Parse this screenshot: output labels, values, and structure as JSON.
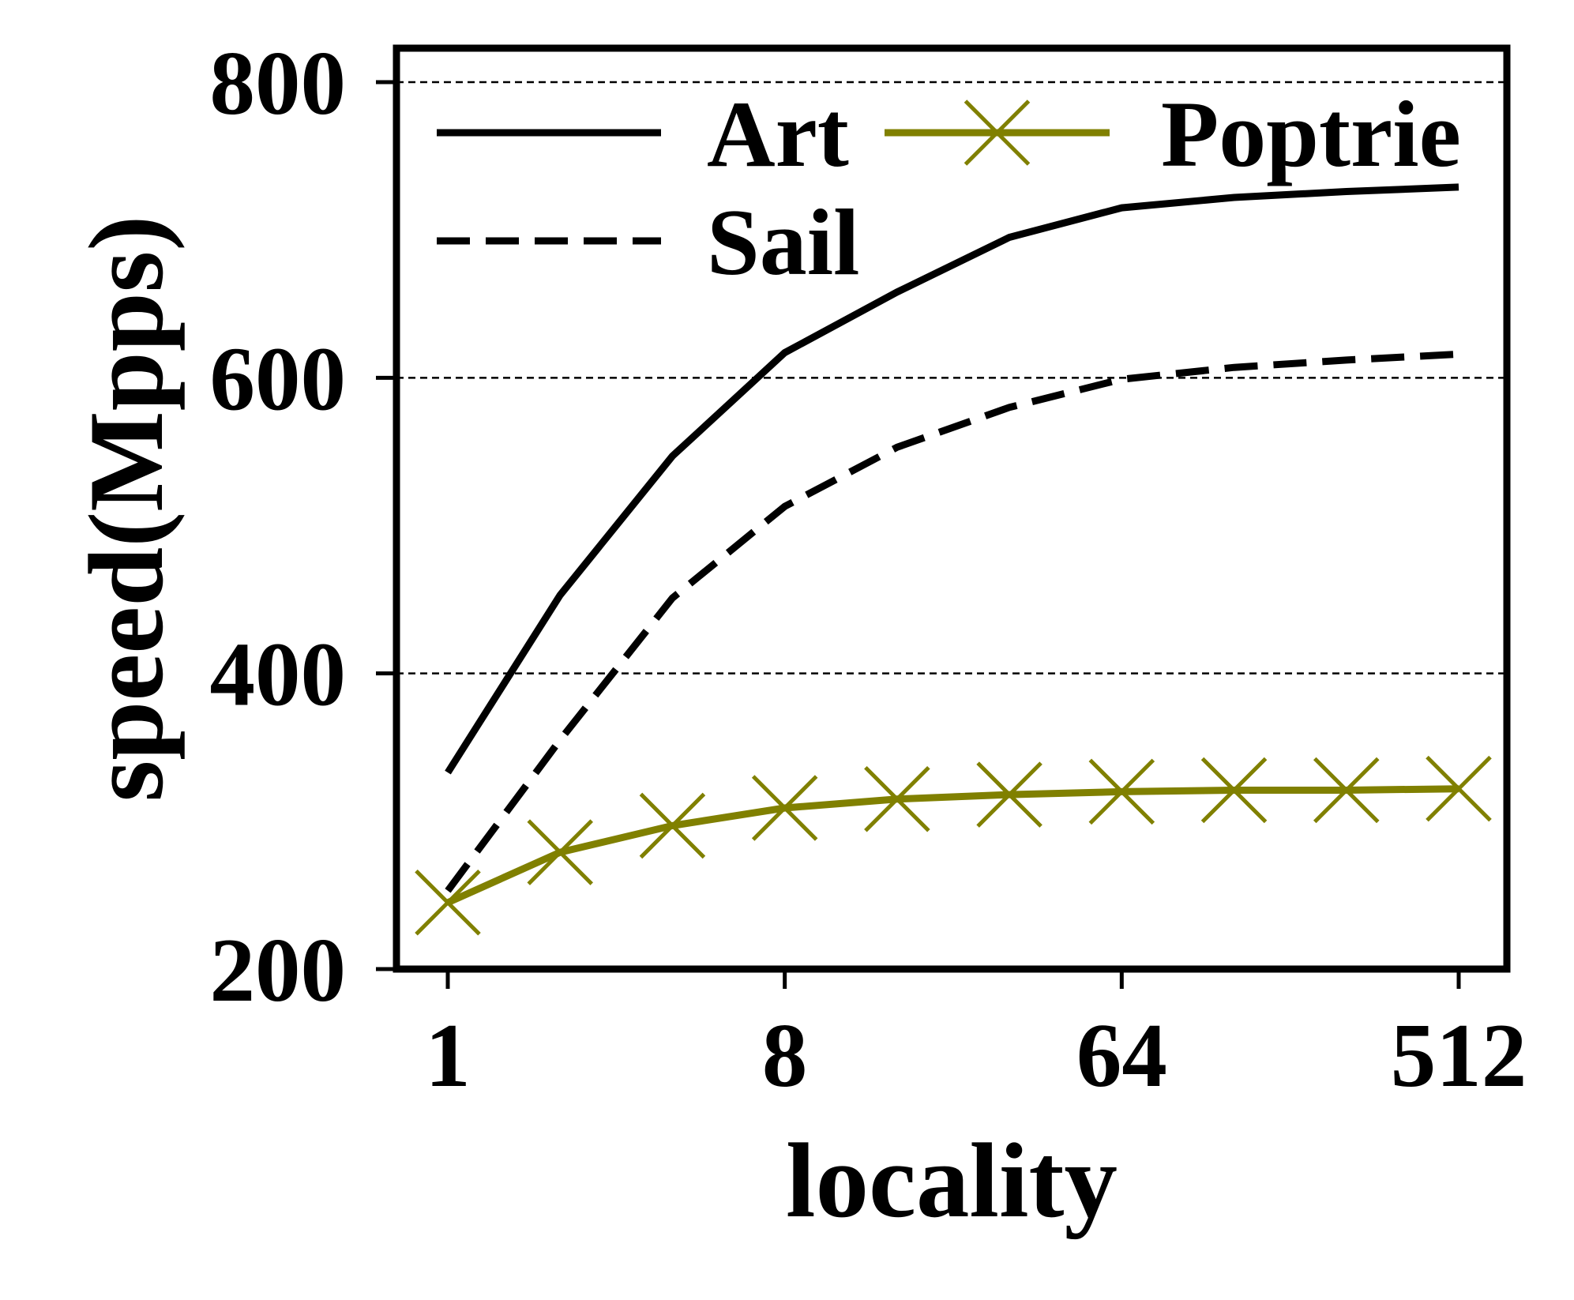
{
  "chart_data": {
    "type": "line",
    "xlabel": "locality",
    "ylabel": "speed(Mpps)",
    "x_scale": "log2",
    "x": [
      1,
      2,
      4,
      8,
      16,
      32,
      64,
      128,
      256,
      512
    ],
    "xticks": [
      1,
      8,
      64,
      512
    ],
    "xtick_labels": [
      "1",
      "8",
      "64",
      "512"
    ],
    "ylim": [
      200,
      800
    ],
    "yticks": [
      200,
      400,
      600,
      800
    ],
    "ytick_labels": [
      "200",
      "400",
      "600",
      "800"
    ],
    "grid": "horizontal-dashed",
    "legend_position": "top",
    "series": [
      {
        "name": "Art",
        "color": "#000000",
        "line_style": "solid",
        "marker": "none",
        "values": [
          333,
          453,
          547,
          617,
          658,
          695,
          715,
          722,
          726,
          729
        ]
      },
      {
        "name": "Poptrie",
        "color": "#808000",
        "line_style": "solid",
        "marker": "x",
        "values": [
          245,
          279,
          297,
          309,
          315,
          318,
          320,
          321,
          321,
          322
        ]
      },
      {
        "name": "Sail",
        "color": "#000000",
        "line_style": "dashed",
        "marker": "none",
        "values": [
          253,
          355,
          451,
          513,
          553,
          580,
          599,
          607,
          612,
          616
        ]
      }
    ]
  }
}
